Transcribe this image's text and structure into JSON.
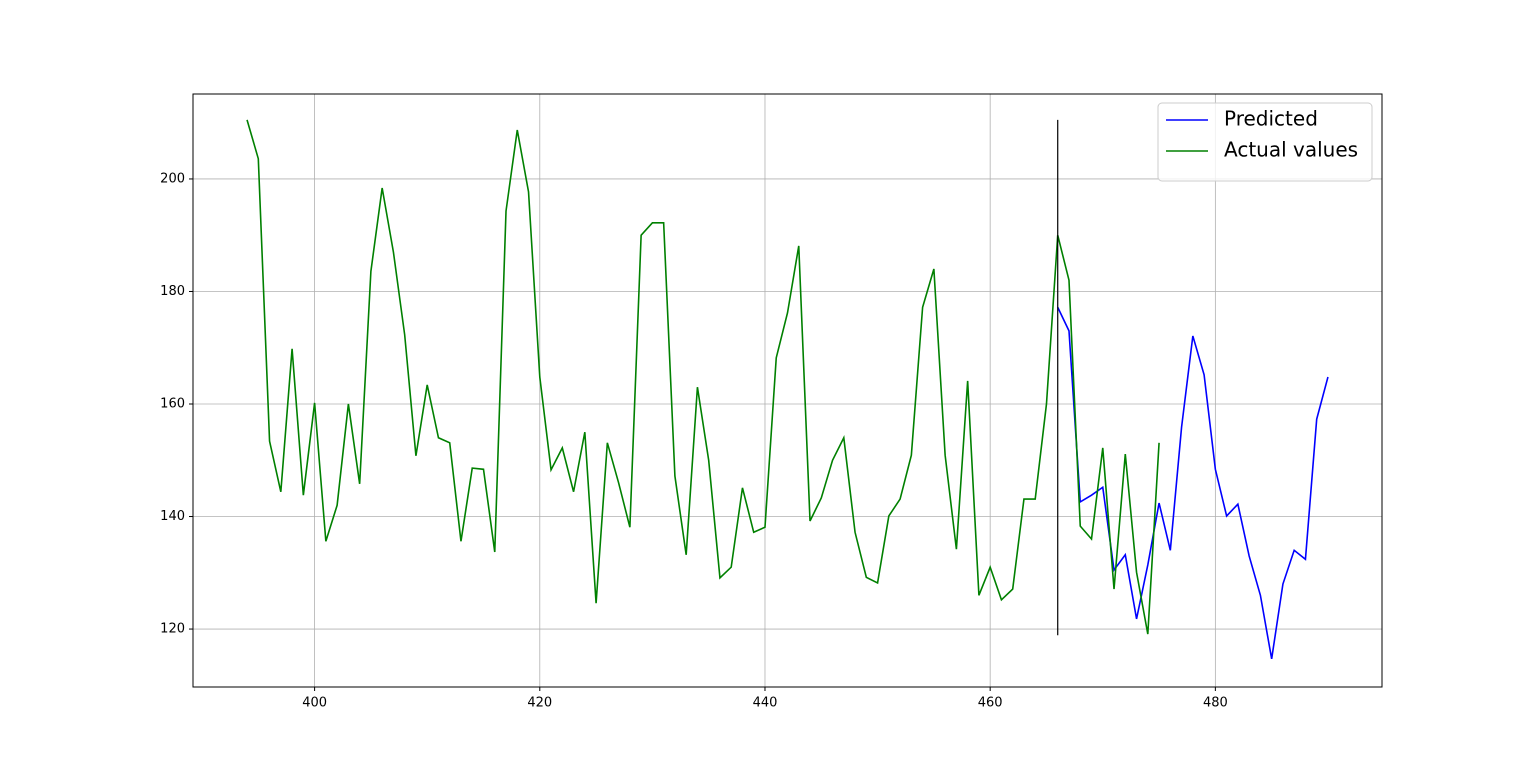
{
  "chart_data": {
    "type": "line",
    "xlim": [
      389.2,
      494.8
    ],
    "ylim": [
      109.7,
      215.1
    ],
    "xticks": [
      400,
      420,
      440,
      460,
      480
    ],
    "yticks": [
      120,
      140,
      160,
      180,
      200
    ],
    "grid": true,
    "legend": "upper right",
    "series": [
      {
        "name": "Predicted",
        "color": "blue",
        "x": [
          466,
          467,
          468,
          469,
          470,
          471,
          472,
          473,
          474,
          475,
          476,
          477,
          478,
          479,
          480,
          481,
          482,
          483,
          484,
          485,
          486,
          487,
          488,
          489,
          490
        ],
        "values": [
          177.2,
          173.0,
          142.6,
          143.8,
          145.2,
          130.5,
          133.2,
          121.8,
          131.4,
          142.4,
          134.0,
          155.9,
          172.1,
          165.2,
          148.4,
          140.1,
          142.2,
          133.0,
          126.0,
          114.7,
          128.0,
          134.0,
          132.4,
          157.3,
          164.8
        ]
      },
      {
        "name": "Actual values",
        "color": "green",
        "x": [
          394,
          395,
          396,
          397,
          398,
          399,
          400,
          401,
          402,
          403,
          404,
          405,
          406,
          407,
          408,
          409,
          410,
          411,
          412,
          413,
          414,
          415,
          416,
          417,
          418,
          419,
          420,
          421,
          422,
          423,
          424,
          425,
          426,
          427,
          428,
          429,
          430,
          431,
          432,
          433,
          434,
          435,
          436,
          437,
          438,
          439,
          440,
          441,
          442,
          443,
          444,
          445,
          446,
          447,
          448,
          449,
          450,
          451,
          452,
          453,
          454,
          455,
          456,
          457,
          458,
          459,
          460,
          461,
          462,
          463,
          464,
          465,
          466,
          467,
          468,
          469,
          470,
          471,
          472,
          473,
          474,
          475
        ],
        "values": [
          210.5,
          203.6,
          153.4,
          144.4,
          169.8,
          143.8,
          160.2,
          135.6,
          142.0,
          160.0,
          145.8,
          183.6,
          198.4,
          187.0,
          172.3,
          150.8,
          163.4,
          154.0,
          153.1,
          135.6,
          148.6,
          148.4,
          133.7,
          194.3,
          208.7,
          197.7,
          164.8,
          148.3,
          152.2,
          144.4,
          155.0,
          124.6,
          153.1,
          146.0,
          138.1,
          190.0,
          192.2,
          192.2,
          147.2,
          133.2,
          163.0,
          150.0,
          129.1,
          131.0,
          145.1,
          137.2,
          138.1,
          168.2,
          176.2,
          188.1,
          139.2,
          143.3,
          150.0,
          154.0,
          137.2,
          129.2,
          128.2,
          140.1,
          143.1,
          150.9,
          177.2,
          184.0,
          150.9,
          134.2,
          164.1,
          126.0,
          131.0,
          125.2,
          127.1,
          143.1,
          143.1,
          160.0,
          190.0,
          182.0,
          138.3,
          136.0,
          152.2,
          127.1,
          151.1,
          130.1,
          119.1,
          153.1
        ]
      }
    ],
    "vline": {
      "x": 466,
      "ymin": 118.9,
      "ymax": 210.5,
      "color": "black"
    }
  }
}
